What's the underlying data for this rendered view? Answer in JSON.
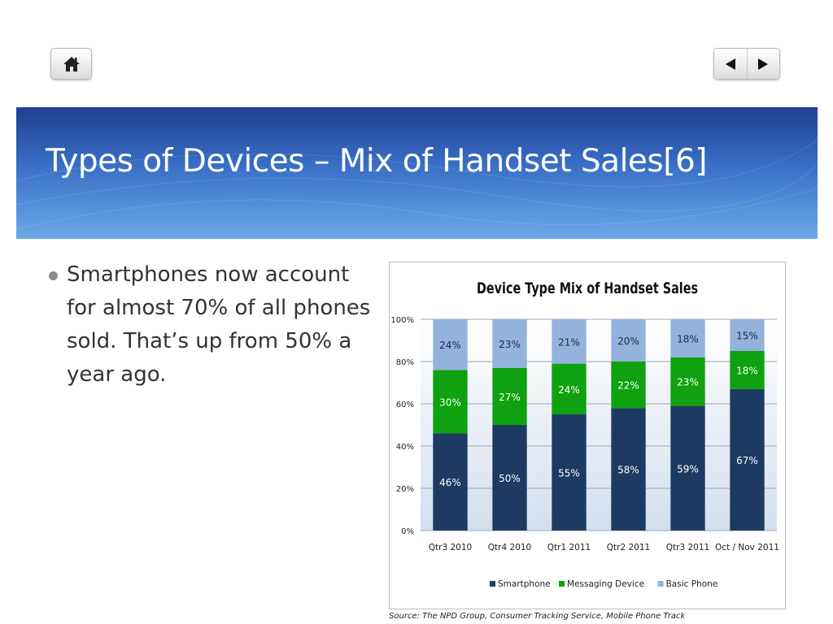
{
  "slide": {
    "title": "Types of Devices – Mix of Handset Sales[6]",
    "bullet": "Smartphones now account for almost 70% of all phones sold.  That’s up from 50% a year ago.",
    "source": "Source: The NPD Group, Consumer Tracking Service, Mobile Phone Track"
  },
  "nav": {
    "home_icon": "home-icon",
    "prev_icon": "triangle-left-icon",
    "next_icon": "triangle-right-icon"
  },
  "chart_data": {
    "type": "bar",
    "stacked": true,
    "title": "Device Type Mix of Handset Sales",
    "xlabel": "",
    "ylabel": "",
    "ylim": [
      0,
      100
    ],
    "yticks": [
      "0%",
      "20%",
      "40%",
      "60%",
      "80%",
      "100%"
    ],
    "grid": true,
    "legend_position": "bottom",
    "categories": [
      "Qtr3 2010",
      "Qtr4 2010",
      "Qtr1 2011",
      "Qtr2 2011",
      "Qtr3 2011",
      "Oct / Nov 2011"
    ],
    "series": [
      {
        "name": "Smartphone",
        "color": "#1d3a63",
        "values": [
          46,
          50,
          55,
          58,
          59,
          67
        ],
        "labels": [
          "46%",
          "50%",
          "55%",
          "58%",
          "59%",
          "67%"
        ]
      },
      {
        "name": "Messaging Device",
        "color": "#0fa10f",
        "values": [
          30,
          27,
          24,
          22,
          23,
          18
        ],
        "labels": [
          "30%",
          "27%",
          "24%",
          "22%",
          "23%",
          "18%"
        ]
      },
      {
        "name": "Basic Phone",
        "color": "#93b3dc",
        "values": [
          24,
          23,
          21,
          20,
          18,
          15
        ],
        "labels": [
          "24%",
          "23%",
          "21%",
          "20%",
          "18%",
          "15%"
        ]
      }
    ]
  }
}
